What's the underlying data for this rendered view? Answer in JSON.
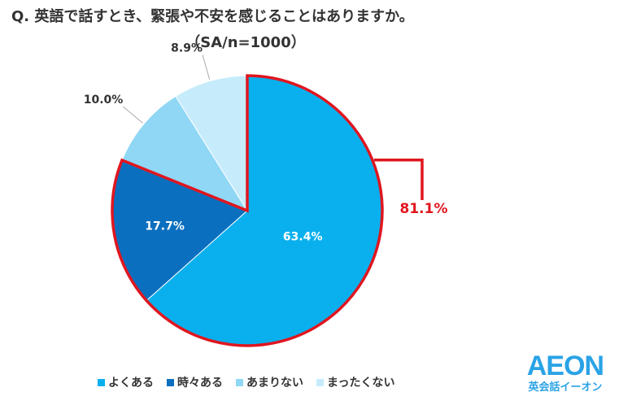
{
  "header": {
    "title": "Q. 英語で話すとき、緊張や不安を感じることはありますか。",
    "subtitle": "（SA/n=1000）"
  },
  "chart_data": {
    "type": "pie",
    "title": "Q. 英語で話すとき、緊張や不安を感じることはありますか。",
    "subtitle": "（SA/n=1000）",
    "labels": [
      "よくある",
      "時々ある",
      "あまりない",
      "まったくない"
    ],
    "values": [
      63.4,
      17.7,
      10.0,
      8.9
    ],
    "value_labels": [
      "63.4%",
      "17.7%",
      "10.0%",
      "8.9%"
    ],
    "colors": [
      "#0ab0ee",
      "#0b6fbf",
      "#8fd7f5",
      "#c6ecfb"
    ],
    "start_angle": "12 o'clock",
    "direction": "clockwise",
    "highlight": {
      "segments": [
        "よくある",
        "時々ある"
      ],
      "total_label": "81.1%",
      "color": "#e0161f"
    },
    "legend_position": "bottom"
  },
  "legend": {
    "items": [
      {
        "label": "よくある",
        "color": "#0ab0ee"
      },
      {
        "label": "時々ある",
        "color": "#0b6fbf"
      },
      {
        "label": "あまりない",
        "color": "#8fd7f5"
      },
      {
        "label": "まったくない",
        "color": "#c6ecfb"
      }
    ]
  },
  "logo": {
    "mark": "AEON",
    "sub": "英会話イーオン",
    "color": "#2aa3e6"
  }
}
